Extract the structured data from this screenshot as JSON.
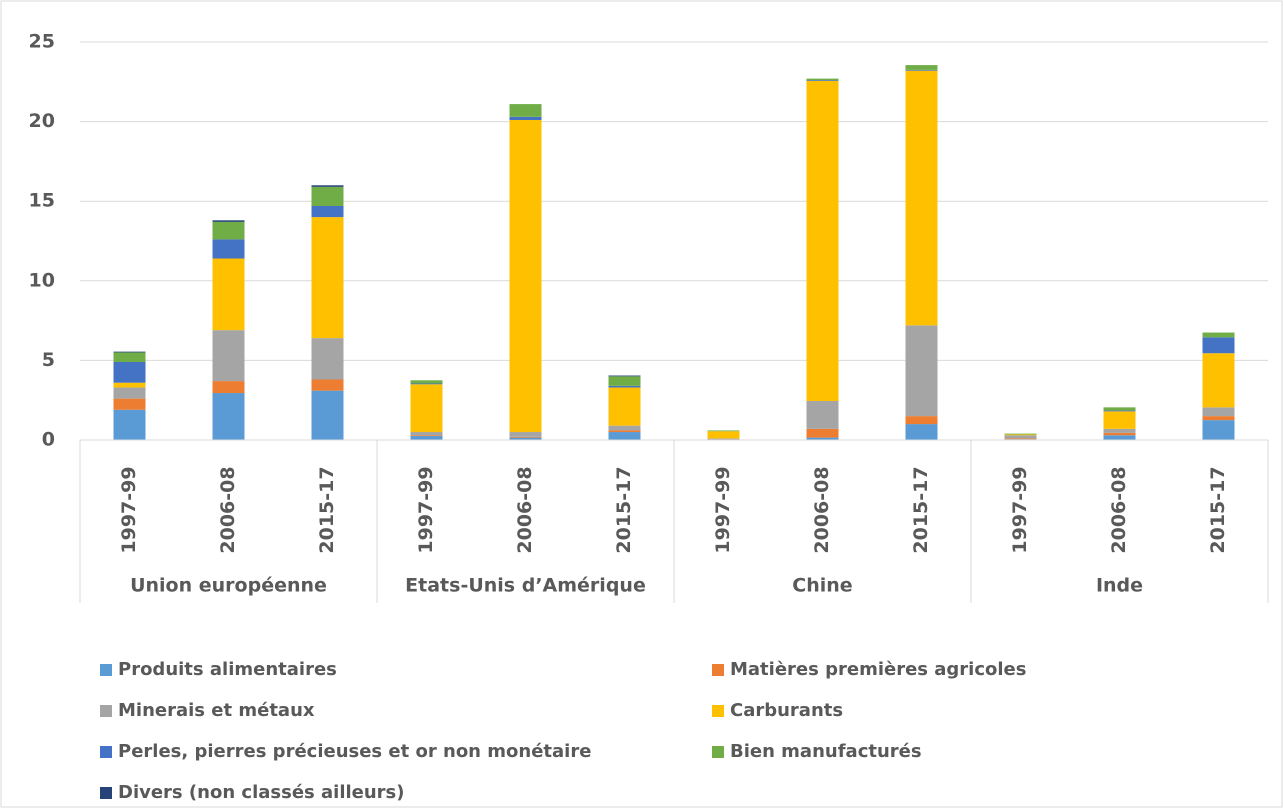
{
  "chart_data": {
    "type": "stacked_bar",
    "groups": [
      "Union européenne",
      "Etats-Unis d’Amérique",
      "Chine",
      "Inde"
    ],
    "categories": [
      "1997-99",
      "2006-08",
      "2015-17",
      "1997-99",
      "2006-08",
      "2015-17",
      "1997-99",
      "2006-08",
      "2015-17",
      "1997-99",
      "2006-08",
      "2015-17"
    ],
    "series": [
      {
        "name": "Produits alimentaires",
        "color": "#5b9bd5",
        "values": [
          1.9,
          2.95,
          3.1,
          0.25,
          0.15,
          0.5,
          0.05,
          0.15,
          1.0,
          0.05,
          0.3,
          1.25
        ]
      },
      {
        "name": "Matières premières agricoles",
        "color": "#ed7d31",
        "values": [
          0.7,
          0.75,
          0.7,
          0.05,
          0.05,
          0.1,
          0.02,
          0.55,
          0.5,
          0.05,
          0.15,
          0.25
        ]
      },
      {
        "name": "Minerais et métaux",
        "color": "#a5a5a5",
        "values": [
          0.7,
          3.2,
          2.6,
          0.2,
          0.3,
          0.3,
          0.03,
          1.75,
          5.7,
          0.2,
          0.25,
          0.55
        ]
      },
      {
        "name": "Carburants",
        "color": "#ffc000",
        "values": [
          0.3,
          4.5,
          7.6,
          3.0,
          19.6,
          2.4,
          0.45,
          20.1,
          16.0,
          0.05,
          1.1,
          3.4
        ]
      },
      {
        "name": "Perles, pierres précieuses et or non monétaire",
        "color": "#4472c4",
        "values": [
          1.3,
          1.2,
          0.7,
          0.05,
          0.2,
          0.1,
          0.0,
          0.05,
          0.05,
          0.0,
          0.05,
          1.0
        ]
      },
      {
        "name": "Bien manufacturés",
        "color": "#70ad47",
        "values": [
          0.6,
          1.1,
          1.2,
          0.2,
          0.8,
          0.6,
          0.05,
          0.1,
          0.3,
          0.05,
          0.2,
          0.3
        ]
      },
      {
        "name": "Divers (non classés ailleurs)",
        "color": "#264478",
        "values": [
          0.05,
          0.1,
          0.1,
          0.0,
          0.0,
          0.05,
          0.0,
          0.0,
          0.0,
          0.0,
          0.0,
          0.0
        ]
      }
    ],
    "ylim": [
      0,
      25
    ],
    "yticks": [
      0,
      5,
      10,
      15,
      20,
      25
    ],
    "grid": true,
    "legend": "bottom"
  }
}
